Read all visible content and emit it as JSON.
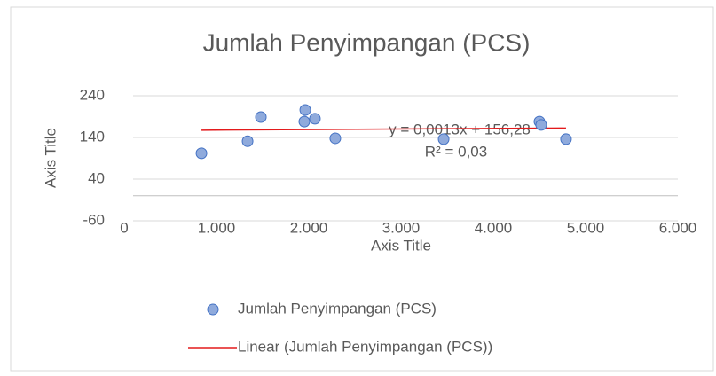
{
  "chart_data": {
    "type": "scatter",
    "title": "Jumlah Penyimpangan (PCS)",
    "x_label": "Axis Title",
    "y_label": "Axis Title",
    "series": [
      {
        "name": "Jumlah Penyimpangan (PCS)",
        "color": "#8faadc",
        "stroke": "#4472c4",
        "x": [
          837,
          1337,
          1481,
          1962,
          1952,
          2067,
          2288,
          3462,
          4500,
          4519,
          4788
        ],
        "values": [
          102,
          131,
          189,
          206,
          178,
          185,
          138,
          136,
          178,
          170,
          136
        ]
      }
    ],
    "trendline": {
      "name": "Linear (Jumlah Penyimpangan (PCS))",
      "color": "#e31a1c",
      "slope": 0.0013,
      "intercept": 156.28,
      "equation": "y = 0,0013x + 156,28",
      "r2": "R² = 0,03"
    },
    "xlim": [
      0,
      6000
    ],
    "xticks": [
      0,
      {
        "value": 1000,
        "label": "1.000"
      },
      {
        "value": 2000,
        "label": "2.000"
      },
      {
        "value": 3000,
        "label": "3.000"
      },
      {
        "value": 4000,
        "label": "4.000"
      },
      {
        "value": 5000,
        "label": "5.000"
      },
      {
        "value": 6000,
        "label": "6.000"
      }
    ],
    "ylim": [
      -60,
      240
    ],
    "yticks": [
      -60,
      40,
      140,
      240
    ],
    "grid": true
  }
}
